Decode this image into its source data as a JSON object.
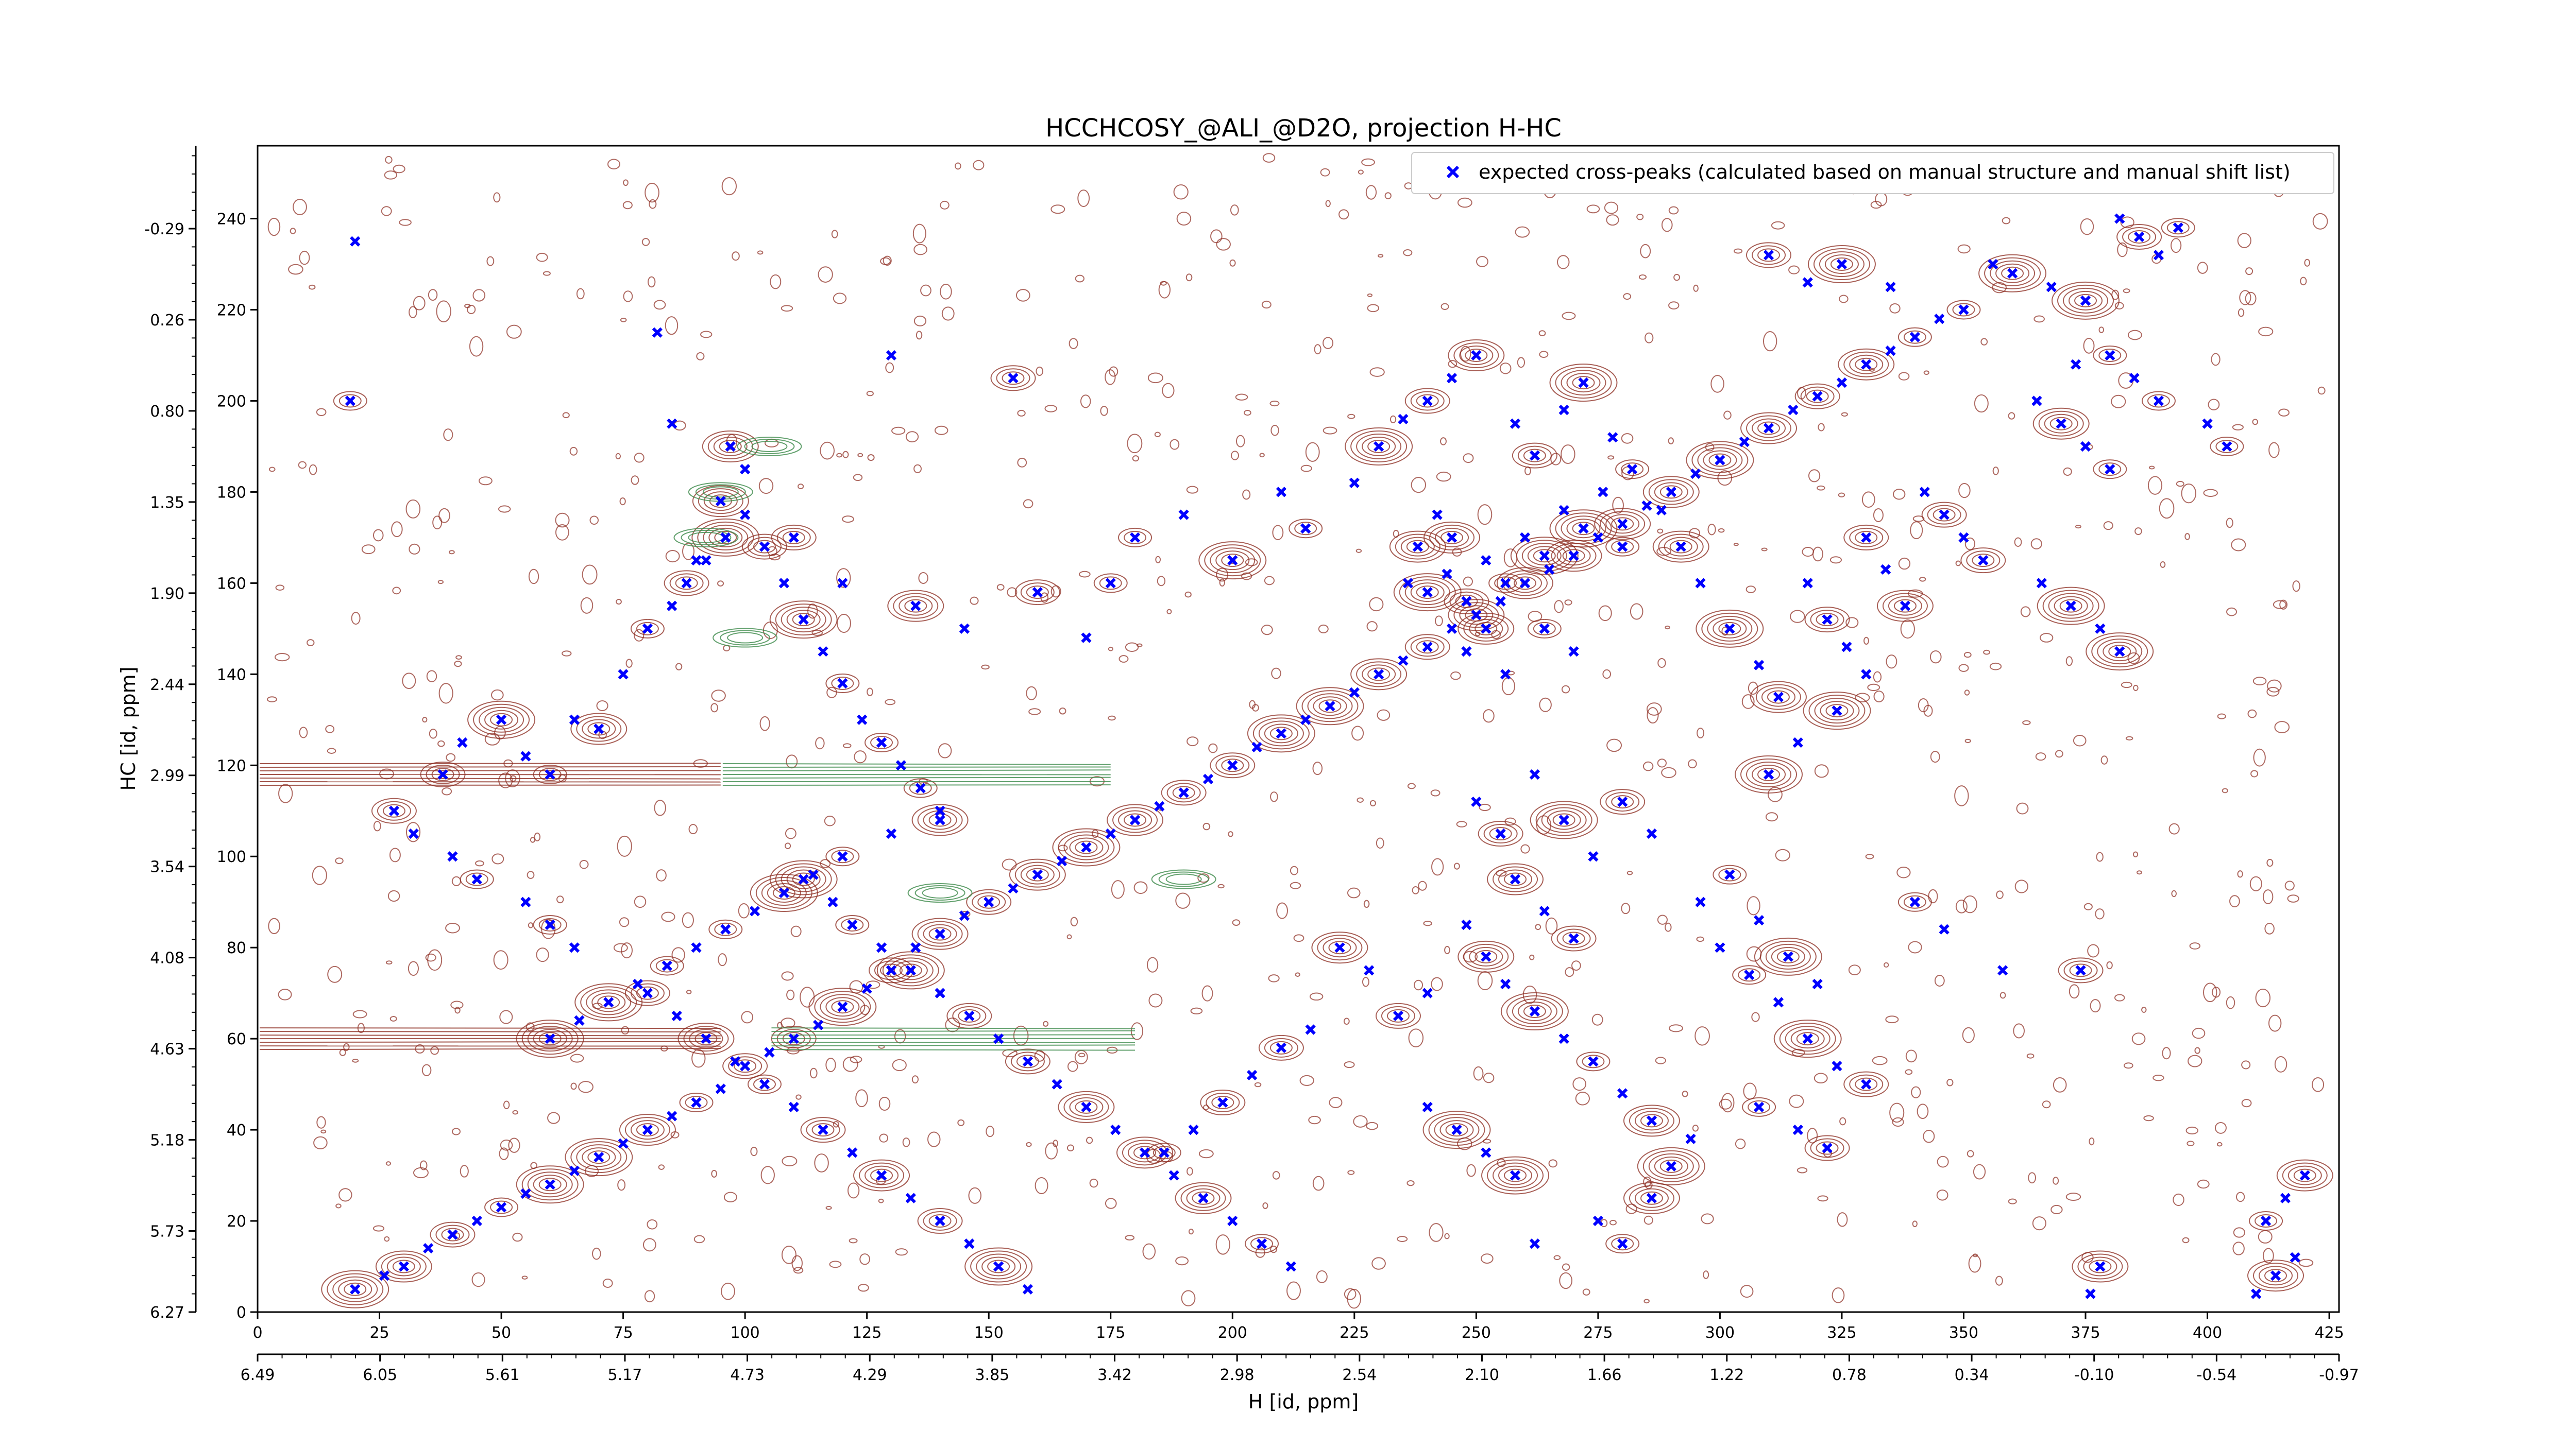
{
  "chart_data": {
    "type": "scatter",
    "title": "HCCHCOSY_@ALI_@D2O, projection H-HC",
    "xlabel": "H [id, ppm]",
    "ylabel": "HC [id, ppm]",
    "x_index_range": [
      0,
      427
    ],
    "y_index_range": [
      0,
      256
    ],
    "x_index_ticks": [
      "0",
      "25",
      "50",
      "75",
      "100",
      "125",
      "150",
      "175",
      "200",
      "225",
      "250",
      "275",
      "300",
      "325",
      "350",
      "375",
      "400",
      "425"
    ],
    "x_ppm_ticks": [
      "6.49",
      "6.05",
      "5.61",
      "5.17",
      "4.73",
      "4.29",
      "3.85",
      "3.42",
      "2.98",
      "2.54",
      "2.10",
      "1.66",
      "1.22",
      "0.78",
      "0.34",
      "-0.10",
      "-0.54",
      "-0.97"
    ],
    "y_index_ticks": [
      "0",
      "20",
      "40",
      "60",
      "80",
      "100",
      "120",
      "140",
      "160",
      "180",
      "200",
      "220",
      "240"
    ],
    "y_ppm_ticks": [
      "6.27",
      "5.73",
      "5.18",
      "4.63",
      "4.08",
      "3.54",
      "2.99",
      "2.44",
      "1.90",
      "1.35",
      "0.80",
      "0.26",
      "-0.29"
    ],
    "legend": {
      "position": "top-right",
      "label": "expected cross-peaks (calculated based on manual structure and manual shift list)"
    },
    "series": [
      {
        "name": "expected cross-peaks (calculated based on manual structure and manual shift list)",
        "marker": "x",
        "color": "#0000ff",
        "points": [
          [
            20,
            5
          ],
          [
            26,
            8
          ],
          [
            30,
            10
          ],
          [
            35,
            14
          ],
          [
            40,
            17
          ],
          [
            45,
            20
          ],
          [
            50,
            23
          ],
          [
            55,
            26
          ],
          [
            60,
            28
          ],
          [
            65,
            31
          ],
          [
            70,
            34
          ],
          [
            75,
            37
          ],
          [
            80,
            40
          ],
          [
            85,
            43
          ],
          [
            90,
            46
          ],
          [
            95,
            49
          ],
          [
            100,
            54
          ],
          [
            105,
            57
          ],
          [
            110,
            60
          ],
          [
            115,
            63
          ],
          [
            120,
            67
          ],
          [
            125,
            71
          ],
          [
            130,
            75
          ],
          [
            135,
            80
          ],
          [
            140,
            83
          ],
          [
            145,
            87
          ],
          [
            150,
            90
          ],
          [
            155,
            93
          ],
          [
            160,
            96
          ],
          [
            165,
            99
          ],
          [
            170,
            102
          ],
          [
            175,
            105
          ],
          [
            180,
            108
          ],
          [
            185,
            111
          ],
          [
            190,
            114
          ],
          [
            195,
            117
          ],
          [
            200,
            120
          ],
          [
            205,
            124
          ],
          [
            210,
            127
          ],
          [
            215,
            130
          ],
          [
            220,
            133
          ],
          [
            225,
            136
          ],
          [
            230,
            140
          ],
          [
            235,
            143
          ],
          [
            240,
            146
          ],
          [
            245,
            150
          ],
          [
            250,
            153
          ],
          [
            255,
            156
          ],
          [
            260,
            160
          ],
          [
            265,
            163
          ],
          [
            270,
            166
          ],
          [
            275,
            170
          ],
          [
            280,
            173
          ],
          [
            285,
            177
          ],
          [
            290,
            180
          ],
          [
            295,
            184
          ],
          [
            300,
            187
          ],
          [
            305,
            191
          ],
          [
            310,
            194
          ],
          [
            315,
            198
          ],
          [
            320,
            201
          ],
          [
            325,
            204
          ],
          [
            330,
            208
          ],
          [
            335,
            211
          ],
          [
            340,
            214
          ],
          [
            345,
            218
          ],
          [
            350,
            220
          ],
          [
            20,
            235
          ],
          [
            19,
            200
          ],
          [
            82,
            215
          ],
          [
            97,
            190
          ],
          [
            85,
            195
          ],
          [
            175,
            160
          ],
          [
            130,
            210
          ],
          [
            155,
            205
          ],
          [
            100,
            185
          ],
          [
            95,
            178
          ],
          [
            90,
            165
          ],
          [
            110,
            170
          ],
          [
            120,
            160
          ],
          [
            135,
            155
          ],
          [
            145,
            150
          ],
          [
            160,
            158
          ],
          [
            170,
            148
          ],
          [
            180,
            170
          ],
          [
            190,
            175
          ],
          [
            200,
            165
          ],
          [
            210,
            180
          ],
          [
            215,
            172
          ],
          [
            225,
            182
          ],
          [
            230,
            190
          ],
          [
            235,
            196
          ],
          [
            240,
            200
          ],
          [
            245,
            205
          ],
          [
            250,
            210
          ],
          [
            258,
            195
          ],
          [
            262,
            188
          ],
          [
            268,
            198
          ],
          [
            272,
            204
          ],
          [
            278,
            192
          ],
          [
            282,
            185
          ],
          [
            288,
            176
          ],
          [
            292,
            168
          ],
          [
            296,
            160
          ],
          [
            302,
            150
          ],
          [
            308,
            142
          ],
          [
            312,
            135
          ],
          [
            318,
            160
          ],
          [
            322,
            152
          ],
          [
            326,
            146
          ],
          [
            330,
            170
          ],
          [
            334,
            163
          ],
          [
            338,
            155
          ],
          [
            330,
            140
          ],
          [
            324,
            132
          ],
          [
            316,
            125
          ],
          [
            310,
            118
          ],
          [
            236,
            160
          ],
          [
            240,
            158
          ],
          [
            244,
            162
          ],
          [
            248,
            156
          ],
          [
            252,
            165
          ],
          [
            256,
            160
          ],
          [
            260,
            170
          ],
          [
            264,
            166
          ],
          [
            268,
            176
          ],
          [
            272,
            172
          ],
          [
            276,
            180
          ],
          [
            280,
            168
          ],
          [
            248,
            145
          ],
          [
            252,
            150
          ],
          [
            256,
            140
          ],
          [
            264,
            150
          ],
          [
            270,
            145
          ],
          [
            245,
            170
          ],
          [
            242,
            175
          ],
          [
            238,
            168
          ],
          [
            250,
            112
          ],
          [
            255,
            105
          ],
          [
            262,
            118
          ],
          [
            268,
            108
          ],
          [
            274,
            100
          ],
          [
            280,
            112
          ],
          [
            286,
            105
          ],
          [
            258,
            95
          ],
          [
            264,
            88
          ],
          [
            270,
            82
          ],
          [
            248,
            85
          ],
          [
            252,
            78
          ],
          [
            256,
            72
          ],
          [
            262,
            66
          ],
          [
            268,
            60
          ],
          [
            274,
            55
          ],
          [
            280,
            48
          ],
          [
            286,
            42
          ],
          [
            240,
            70
          ],
          [
            234,
            65
          ],
          [
            228,
            75
          ],
          [
            222,
            80
          ],
          [
            216,
            62
          ],
          [
            210,
            58
          ],
          [
            204,
            52
          ],
          [
            198,
            46
          ],
          [
            192,
            40
          ],
          [
            186,
            35
          ],
          [
            240,
            45
          ],
          [
            246,
            40
          ],
          [
            252,
            35
          ],
          [
            258,
            30
          ],
          [
            300,
            80
          ],
          [
            306,
            74
          ],
          [
            312,
            68
          ],
          [
            318,
            60
          ],
          [
            324,
            54
          ],
          [
            330,
            50
          ],
          [
            296,
            90
          ],
          [
            302,
            96
          ],
          [
            308,
            86
          ],
          [
            314,
            78
          ],
          [
            320,
            72
          ],
          [
            340,
            90
          ],
          [
            346,
            84
          ],
          [
            308,
            45
          ],
          [
            316,
            40
          ],
          [
            322,
            36
          ],
          [
            294,
            38
          ],
          [
            290,
            32
          ],
          [
            275,
            20
          ],
          [
            280,
            15
          ],
          [
            262,
            15
          ],
          [
            286,
            25
          ],
          [
            40,
            100
          ],
          [
            45,
            95
          ],
          [
            55,
            90
          ],
          [
            60,
            85
          ],
          [
            65,
            80
          ],
          [
            28,
            110
          ],
          [
            32,
            105
          ],
          [
            38,
            118
          ],
          [
            42,
            125
          ],
          [
            50,
            130
          ],
          [
            55,
            122
          ],
          [
            60,
            118
          ],
          [
            65,
            130
          ],
          [
            70,
            128
          ],
          [
            75,
            140
          ],
          [
            80,
            150
          ],
          [
            85,
            155
          ],
          [
            88,
            160
          ],
          [
            92,
            165
          ],
          [
            96,
            170
          ],
          [
            100,
            175
          ],
          [
            104,
            168
          ],
          [
            108,
            160
          ],
          [
            112,
            152
          ],
          [
            116,
            145
          ],
          [
            120,
            138
          ],
          [
            124,
            130
          ],
          [
            128,
            125
          ],
          [
            132,
            120
          ],
          [
            136,
            115
          ],
          [
            140,
            110
          ],
          [
            112,
            95
          ],
          [
            118,
            90
          ],
          [
            122,
            85
          ],
          [
            128,
            80
          ],
          [
            134,
            75
          ],
          [
            140,
            70
          ],
          [
            146,
            65
          ],
          [
            152,
            60
          ],
          [
            158,
            55
          ],
          [
            164,
            50
          ],
          [
            170,
            45
          ],
          [
            176,
            40
          ],
          [
            182,
            35
          ],
          [
            188,
            30
          ],
          [
            194,
            25
          ],
          [
            200,
            20
          ],
          [
            206,
            15
          ],
          [
            212,
            10
          ],
          [
            80,
            70
          ],
          [
            86,
            65
          ],
          [
            92,
            60
          ],
          [
            98,
            55
          ],
          [
            104,
            50
          ],
          [
            110,
            45
          ],
          [
            116,
            40
          ],
          [
            122,
            35
          ],
          [
            128,
            30
          ],
          [
            134,
            25
          ],
          [
            140,
            20
          ],
          [
            146,
            15
          ],
          [
            152,
            10
          ],
          [
            158,
            5
          ],
          [
            60,
            60
          ],
          [
            66,
            64
          ],
          [
            72,
            68
          ],
          [
            78,
            72
          ],
          [
            84,
            76
          ],
          [
            90,
            80
          ],
          [
            96,
            84
          ],
          [
            102,
            88
          ],
          [
            108,
            92
          ],
          [
            114,
            96
          ],
          [
            120,
            100
          ],
          [
            130,
            105
          ],
          [
            140,
            108
          ],
          [
            356,
            230
          ],
          [
            360,
            228
          ],
          [
            368,
            225
          ],
          [
            375,
            222
          ],
          [
            382,
            240
          ],
          [
            386,
            236
          ],
          [
            390,
            232
          ],
          [
            394,
            238
          ],
          [
            365,
            200
          ],
          [
            370,
            195
          ],
          [
            375,
            190
          ],
          [
            380,
            185
          ],
          [
            366,
            160
          ],
          [
            372,
            155
          ],
          [
            378,
            150
          ],
          [
            382,
            145
          ],
          [
            358,
            75
          ],
          [
            374,
            75
          ],
          [
            376,
            4
          ],
          [
            378,
            10
          ],
          [
            410,
            4
          ],
          [
            414,
            8
          ],
          [
            418,
            12
          ],
          [
            412,
            20
          ],
          [
            416,
            25
          ],
          [
            420,
            30
          ],
          [
            373,
            208
          ],
          [
            380,
            210
          ],
          [
            385,
            205
          ],
          [
            390,
            200
          ],
          [
            400,
            195
          ],
          [
            404,
            190
          ],
          [
            342,
            180
          ],
          [
            346,
            175
          ],
          [
            350,
            170
          ],
          [
            354,
            165
          ],
          [
            335,
            225
          ],
          [
            325,
            230
          ],
          [
            318,
            226
          ],
          [
            310,
            232
          ]
        ]
      }
    ],
    "contours": [
      {
        "name": "positive",
        "color": "#8b2a1e"
      },
      {
        "name": "negative",
        "color": "#3c8a4a"
      }
    ],
    "grid": false
  }
}
